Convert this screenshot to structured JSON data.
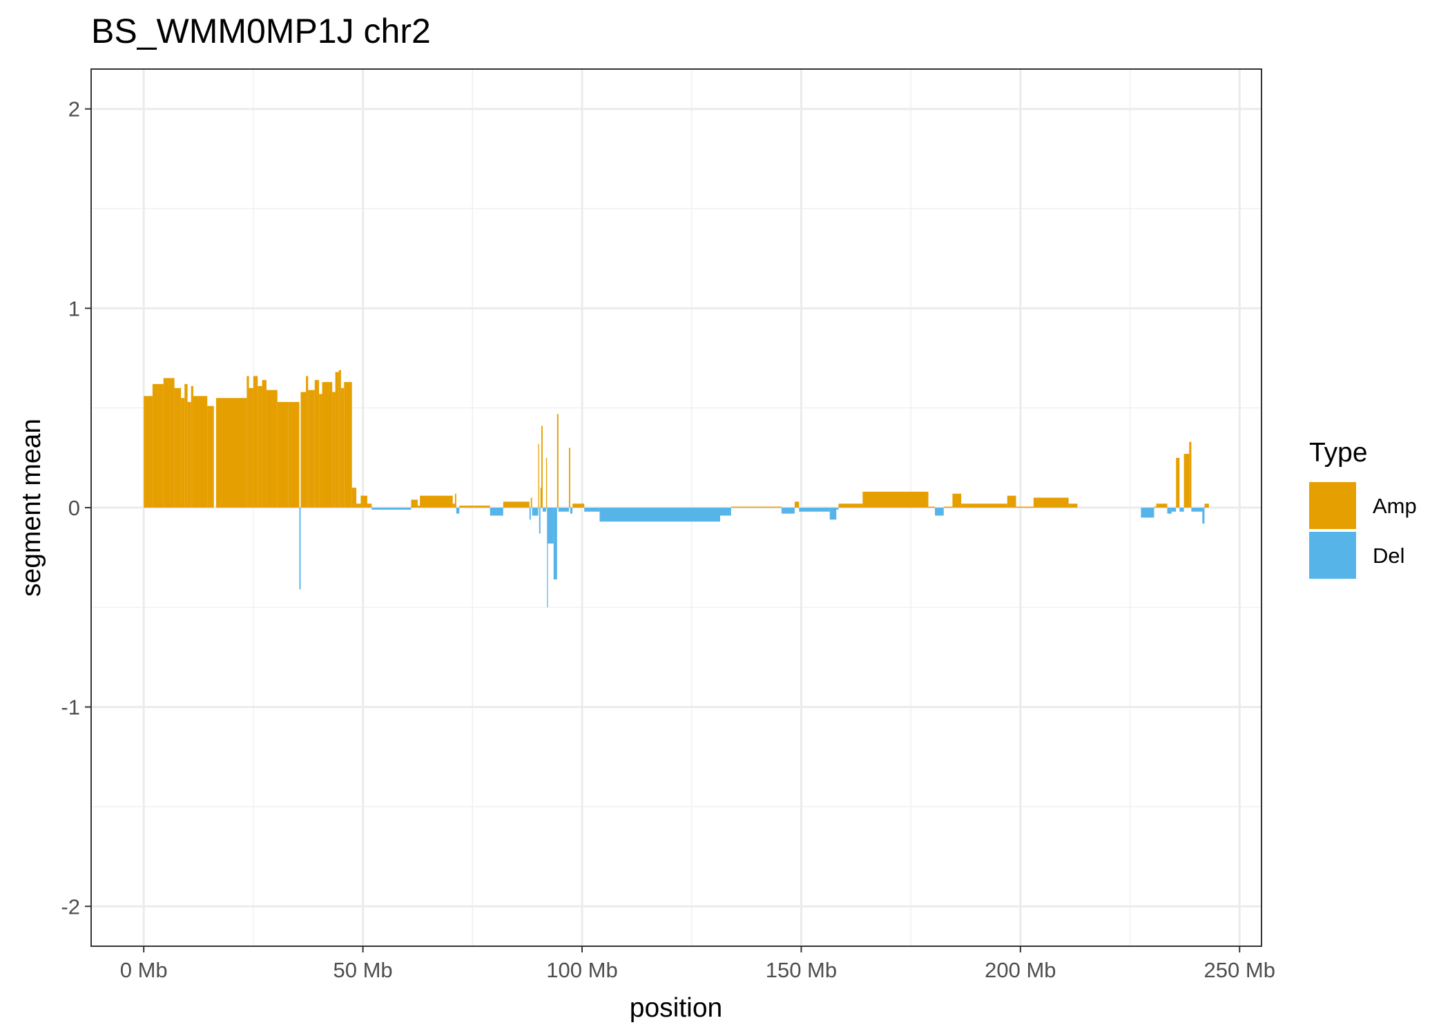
{
  "chart_data": {
    "type": "bar",
    "title": "BS_WMM0MP1J chr2",
    "xlabel": "position",
    "ylabel": "segment mean",
    "xlim": [
      -12,
      255
    ],
    "ylim": [
      -2.2,
      2.2
    ],
    "x_ticks": [
      {
        "value": 0,
        "label": "0 Mb"
      },
      {
        "value": 50,
        "label": "50 Mb"
      },
      {
        "value": 100,
        "label": "100 Mb"
      },
      {
        "value": 150,
        "label": "150 Mb"
      },
      {
        "value": 200,
        "label": "200 Mb"
      },
      {
        "value": 250,
        "label": "250 Mb"
      }
    ],
    "y_ticks": [
      {
        "value": 2,
        "label": "2"
      },
      {
        "value": 1,
        "label": "1"
      },
      {
        "value": 0,
        "label": "0"
      },
      {
        "value": -1,
        "label": "-1"
      },
      {
        "value": -2,
        "label": "-2"
      }
    ],
    "grid": true,
    "legend": {
      "title": "Type",
      "position": "right",
      "items": [
        {
          "name": "Amp",
          "color": "#E69F00"
        },
        {
          "name": "Del",
          "color": "#56B4E9"
        }
      ]
    },
    "x_unit": "Mb",
    "segments": [
      {
        "start": 0.0,
        "end": 2.0,
        "value": 0.56,
        "type": "Amp"
      },
      {
        "start": 2.0,
        "end": 4.5,
        "value": 0.62,
        "type": "Amp"
      },
      {
        "start": 4.5,
        "end": 7.0,
        "value": 0.65,
        "type": "Amp"
      },
      {
        "start": 7.0,
        "end": 8.5,
        "value": 0.6,
        "type": "Amp"
      },
      {
        "start": 8.5,
        "end": 9.3,
        "value": 0.55,
        "type": "Amp"
      },
      {
        "start": 9.3,
        "end": 10.0,
        "value": 0.62,
        "type": "Amp"
      },
      {
        "start": 10.0,
        "end": 10.8,
        "value": 0.53,
        "type": "Amp"
      },
      {
        "start": 10.8,
        "end": 11.3,
        "value": 0.61,
        "type": "Amp"
      },
      {
        "start": 11.3,
        "end": 12.5,
        "value": 0.56,
        "type": "Amp"
      },
      {
        "start": 12.5,
        "end": 14.5,
        "value": 0.56,
        "type": "Amp"
      },
      {
        "start": 14.5,
        "end": 16.0,
        "value": 0.51,
        "type": "Amp"
      },
      {
        "start": 16.5,
        "end": 23.5,
        "value": 0.55,
        "type": "Amp"
      },
      {
        "start": 23.5,
        "end": 24.0,
        "value": 0.66,
        "type": "Amp"
      },
      {
        "start": 24.0,
        "end": 25.0,
        "value": 0.6,
        "type": "Amp"
      },
      {
        "start": 25.0,
        "end": 26.0,
        "value": 0.66,
        "type": "Amp"
      },
      {
        "start": 26.0,
        "end": 27.0,
        "value": 0.61,
        "type": "Amp"
      },
      {
        "start": 27.0,
        "end": 28.0,
        "value": 0.64,
        "type": "Amp"
      },
      {
        "start": 28.0,
        "end": 30.5,
        "value": 0.59,
        "type": "Amp"
      },
      {
        "start": 30.5,
        "end": 33.0,
        "value": 0.53,
        "type": "Amp"
      },
      {
        "start": 33.0,
        "end": 35.5,
        "value": 0.53,
        "type": "Amp"
      },
      {
        "start": 35.5,
        "end": 35.8,
        "value": -0.41,
        "type": "Del"
      },
      {
        "start": 35.8,
        "end": 37.0,
        "value": 0.58,
        "type": "Amp"
      },
      {
        "start": 37.0,
        "end": 37.5,
        "value": 0.66,
        "type": "Amp"
      },
      {
        "start": 37.5,
        "end": 39.0,
        "value": 0.59,
        "type": "Amp"
      },
      {
        "start": 39.0,
        "end": 40.0,
        "value": 0.64,
        "type": "Amp"
      },
      {
        "start": 40.0,
        "end": 40.7,
        "value": 0.57,
        "type": "Amp"
      },
      {
        "start": 40.7,
        "end": 43.0,
        "value": 0.63,
        "type": "Amp"
      },
      {
        "start": 43.0,
        "end": 43.7,
        "value": 0.58,
        "type": "Amp"
      },
      {
        "start": 43.7,
        "end": 44.5,
        "value": 0.68,
        "type": "Amp"
      },
      {
        "start": 44.5,
        "end": 45.0,
        "value": 0.69,
        "type": "Amp"
      },
      {
        "start": 45.0,
        "end": 45.7,
        "value": 0.6,
        "type": "Amp"
      },
      {
        "start": 45.7,
        "end": 47.5,
        "value": 0.63,
        "type": "Amp"
      },
      {
        "start": 47.5,
        "end": 48.5,
        "value": 0.1,
        "type": "Amp"
      },
      {
        "start": 48.5,
        "end": 49.5,
        "value": 0.02,
        "type": "Amp"
      },
      {
        "start": 49.5,
        "end": 51.0,
        "value": 0.06,
        "type": "Amp"
      },
      {
        "start": 51.0,
        "end": 52.0,
        "value": 0.02,
        "type": "Amp"
      },
      {
        "start": 52.0,
        "end": 61.0,
        "value": -0.01,
        "type": "Del"
      },
      {
        "start": 61.0,
        "end": 62.5,
        "value": 0.04,
        "type": "Amp"
      },
      {
        "start": 62.5,
        "end": 63.0,
        "value": 0.01,
        "type": "Amp"
      },
      {
        "start": 63.0,
        "end": 70.5,
        "value": 0.06,
        "type": "Amp"
      },
      {
        "start": 70.5,
        "end": 71.0,
        "value": 0.02,
        "type": "Amp"
      },
      {
        "start": 71.0,
        "end": 71.3,
        "value": 0.07,
        "type": "Amp"
      },
      {
        "start": 71.3,
        "end": 72.0,
        "value": -0.03,
        "type": "Del"
      },
      {
        "start": 72.0,
        "end": 73.0,
        "value": 0.01,
        "type": "Amp"
      },
      {
        "start": 73.0,
        "end": 79.0,
        "value": 0.01,
        "type": "Amp"
      },
      {
        "start": 79.0,
        "end": 82.0,
        "value": -0.04,
        "type": "Del"
      },
      {
        "start": 82.0,
        "end": 88.0,
        "value": 0.03,
        "type": "Amp"
      },
      {
        "start": 88.0,
        "end": 88.3,
        "value": -0.06,
        "type": "Del"
      },
      {
        "start": 88.3,
        "end": 88.6,
        "value": 0.05,
        "type": "Amp"
      },
      {
        "start": 88.6,
        "end": 90.0,
        "value": -0.04,
        "type": "Del"
      },
      {
        "start": 90.0,
        "end": 90.2,
        "value": 0.32,
        "type": "Amp"
      },
      {
        "start": 90.2,
        "end": 90.5,
        "value": -0.13,
        "type": "Del"
      },
      {
        "start": 90.5,
        "end": 90.7,
        "value": 0.1,
        "type": "Amp"
      },
      {
        "start": 90.7,
        "end": 91.0,
        "value": 0.41,
        "type": "Amp"
      },
      {
        "start": 91.0,
        "end": 91.8,
        "value": -0.02,
        "type": "Del"
      },
      {
        "start": 91.8,
        "end": 92.0,
        "value": 0.25,
        "type": "Amp"
      },
      {
        "start": 92.0,
        "end": 92.2,
        "value": -0.5,
        "type": "Del"
      },
      {
        "start": 92.2,
        "end": 93.5,
        "value": -0.18,
        "type": "Del"
      },
      {
        "start": 93.5,
        "end": 94.3,
        "value": -0.36,
        "type": "Del"
      },
      {
        "start": 94.3,
        "end": 94.6,
        "value": 0.47,
        "type": "Amp"
      },
      {
        "start": 94.6,
        "end": 97.0,
        "value": -0.02,
        "type": "Del"
      },
      {
        "start": 97.0,
        "end": 97.3,
        "value": 0.3,
        "type": "Amp"
      },
      {
        "start": 97.3,
        "end": 97.8,
        "value": -0.03,
        "type": "Del"
      },
      {
        "start": 97.8,
        "end": 100.5,
        "value": 0.02,
        "type": "Amp"
      },
      {
        "start": 100.5,
        "end": 104.0,
        "value": -0.02,
        "type": "Del"
      },
      {
        "start": 104.0,
        "end": 131.5,
        "value": -0.07,
        "type": "Del"
      },
      {
        "start": 131.5,
        "end": 134.0,
        "value": -0.04,
        "type": "Del"
      },
      {
        "start": 134.0,
        "end": 145.5,
        "value": 0.005,
        "type": "Amp"
      },
      {
        "start": 145.5,
        "end": 148.5,
        "value": -0.03,
        "type": "Del"
      },
      {
        "start": 148.5,
        "end": 149.5,
        "value": 0.03,
        "type": "Amp"
      },
      {
        "start": 149.5,
        "end": 156.5,
        "value": -0.02,
        "type": "Del"
      },
      {
        "start": 156.5,
        "end": 158.0,
        "value": -0.06,
        "type": "Del"
      },
      {
        "start": 158.0,
        "end": 158.5,
        "value": -0.01,
        "type": "Del"
      },
      {
        "start": 158.5,
        "end": 164.0,
        "value": 0.02,
        "type": "Amp"
      },
      {
        "start": 164.0,
        "end": 179.0,
        "value": 0.08,
        "type": "Amp"
      },
      {
        "start": 179.0,
        "end": 180.5,
        "value": 0.005,
        "type": "Amp"
      },
      {
        "start": 180.5,
        "end": 182.5,
        "value": -0.04,
        "type": "Del"
      },
      {
        "start": 182.5,
        "end": 184.5,
        "value": 0.005,
        "type": "Amp"
      },
      {
        "start": 184.5,
        "end": 186.5,
        "value": 0.07,
        "type": "Amp"
      },
      {
        "start": 186.5,
        "end": 197.0,
        "value": 0.02,
        "type": "Amp"
      },
      {
        "start": 197.0,
        "end": 199.0,
        "value": 0.06,
        "type": "Amp"
      },
      {
        "start": 199.0,
        "end": 200.5,
        "value": 0.005,
        "type": "Amp"
      },
      {
        "start": 200.5,
        "end": 203.0,
        "value": 0.005,
        "type": "Amp"
      },
      {
        "start": 203.0,
        "end": 211.0,
        "value": 0.05,
        "type": "Amp"
      },
      {
        "start": 211.0,
        "end": 213.0,
        "value": 0.02,
        "type": "Amp"
      },
      {
        "start": 227.5,
        "end": 230.5,
        "value": -0.05,
        "type": "Del"
      },
      {
        "start": 230.5,
        "end": 231.0,
        "value": 0.005,
        "type": "Amp"
      },
      {
        "start": 231.0,
        "end": 233.5,
        "value": 0.02,
        "type": "Amp"
      },
      {
        "start": 233.5,
        "end": 234.5,
        "value": -0.03,
        "type": "Del"
      },
      {
        "start": 234.5,
        "end": 235.5,
        "value": -0.02,
        "type": "Del"
      },
      {
        "start": 235.5,
        "end": 236.3,
        "value": 0.25,
        "type": "Amp"
      },
      {
        "start": 236.3,
        "end": 237.3,
        "value": -0.02,
        "type": "Del"
      },
      {
        "start": 237.3,
        "end": 238.5,
        "value": 0.27,
        "type": "Amp"
      },
      {
        "start": 238.5,
        "end": 239.0,
        "value": 0.33,
        "type": "Amp"
      },
      {
        "start": 239.0,
        "end": 241.5,
        "value": -0.02,
        "type": "Del"
      },
      {
        "start": 241.5,
        "end": 242.0,
        "value": -0.08,
        "type": "Del"
      },
      {
        "start": 242.0,
        "end": 243.0,
        "value": 0.02,
        "type": "Amp"
      }
    ]
  }
}
